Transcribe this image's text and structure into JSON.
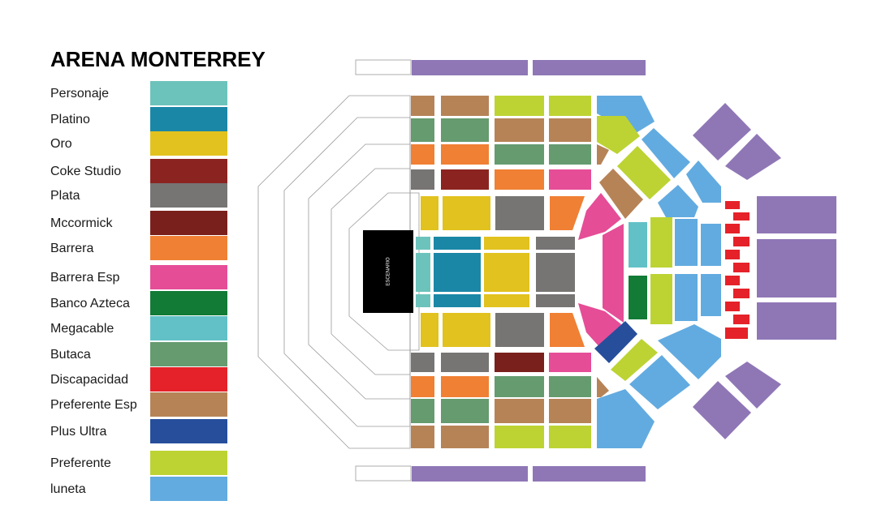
{
  "title": "ARENA MONTERREY",
  "stage_label": "ESCENARIO",
  "legend": [
    {
      "name": "Personaje",
      "color": "#6cc3bb"
    },
    {
      "name": "Platino",
      "color": "#1b87a6"
    },
    {
      "name": "Oro",
      "color": "#e2c21e"
    },
    {
      "name": "Coke Studio",
      "color": "#8b2420"
    },
    {
      "name": "Plata",
      "color": "#777474"
    },
    {
      "name": "Mccormick",
      "color": "#7a201c"
    },
    {
      "name": "Barrera",
      "color": "#f08034"
    },
    {
      "name": "Barrera Esp",
      "color": "#e54d97"
    },
    {
      "name": "Banco Azteca",
      "color": "#127b36"
    },
    {
      "name": "Megacable",
      "color": "#62c1c7"
    },
    {
      "name": "Butaca",
      "color": "#659b6f"
    },
    {
      "name": "Discapacidad",
      "color": "#e52229"
    },
    {
      "name": "Preferente Esp",
      "color": "#b68357"
    },
    {
      "name": "Plus Ultra",
      "color": "#264e9b"
    },
    {
      "name": "Preferente",
      "color": "#bdd333"
    },
    {
      "name": "luneta",
      "color": "#62abe0"
    }
  ]
}
